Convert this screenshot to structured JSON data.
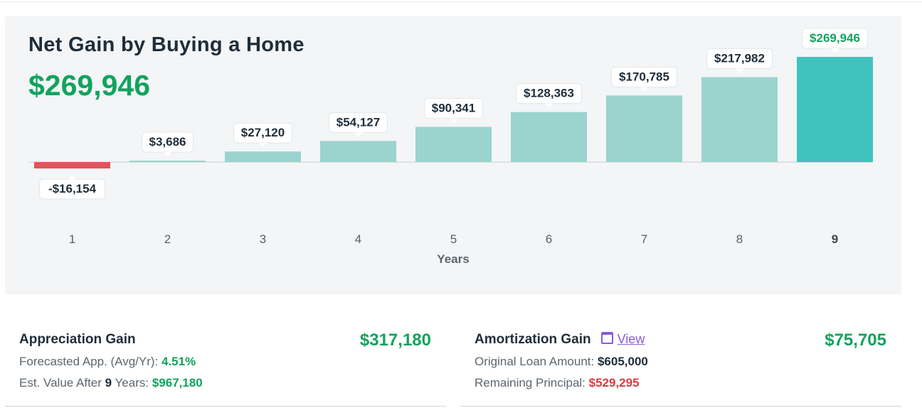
{
  "header": {
    "title": "Net Gain by Buying a Home",
    "total": "$269,946"
  },
  "chart_data": {
    "type": "bar",
    "categories": [
      "1",
      "2",
      "3",
      "4",
      "5",
      "6",
      "7",
      "8",
      "9"
    ],
    "values": [
      -16154,
      3686,
      27120,
      54127,
      90341,
      128363,
      170785,
      217982,
      269946
    ],
    "value_labels": [
      "-$16,154",
      "$3,686",
      "$27,120",
      "$54,127",
      "$90,341",
      "$128,363",
      "$170,785",
      "$217,982",
      "$269,946"
    ],
    "xlabel": "Years",
    "highlight_index": 8,
    "colors": {
      "positive": "#9bd3cf",
      "negative": "#e8505b",
      "highlight": "#40c3bf",
      "highlight_label": "#12a35e"
    }
  },
  "cards": {
    "appreciation": {
      "title": "Appreciation Gain",
      "amount": "$317,180",
      "line1_label": "Forecasted App. (Avg/Yr): ",
      "line1_value": "4.51%",
      "line2_prefix": "Est. Value After ",
      "line2_years": "9",
      "line2_suffix": " Years: ",
      "line2_value": "$967,180"
    },
    "amortization": {
      "title": "Amortization Gain",
      "icon": "calendar-icon",
      "link_label": "View",
      "amount": "$75,705",
      "line1_label": "Original Loan Amount: ",
      "line1_value": "$605,000",
      "line2_label": "Remaining Principal: ",
      "line2_value": "$529,295"
    }
  }
}
